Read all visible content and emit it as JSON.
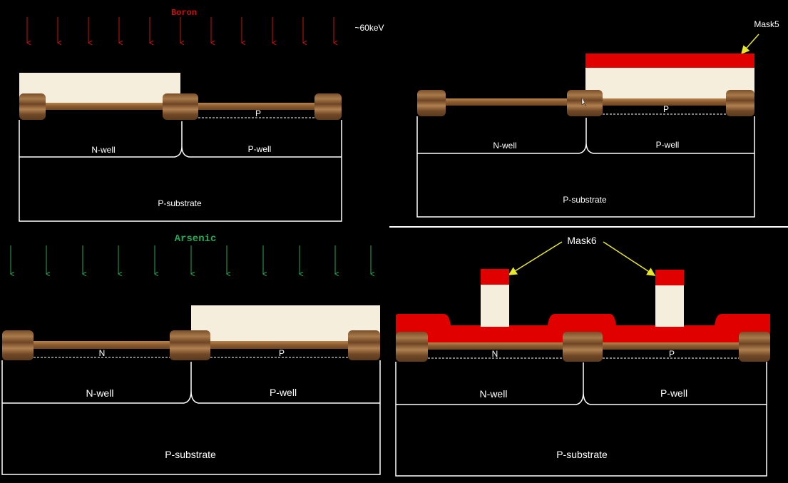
{
  "panels": {
    "boron": {
      "ion_label": "Boron",
      "energy_label": "~60keV",
      "doping_label": "P",
      "nwell": "N-well",
      "pwell": "P-well",
      "substrate": "P-substrate",
      "ion_color": "#cc1111"
    },
    "mask5": {
      "mask_label": "Mask5",
      "doping_label": "P",
      "nwell": "N-well",
      "pwell": "P-well",
      "substrate": "P-substrate"
    },
    "arsenic": {
      "ion_label": "Arsenic",
      "doping_n": "N",
      "doping_p": "P",
      "nwell": "N-well",
      "pwell": "P-well",
      "substrate": "P-substrate",
      "ion_color": "#22aa55"
    },
    "mask6": {
      "mask_label": "Mask6",
      "doping_n": "N",
      "doping_p": "P",
      "nwell": "N-well",
      "pwell": "P-well",
      "substrate": "P-substrate"
    }
  },
  "colors": {
    "resist": "#f6eedc",
    "mask_red": "#e00000",
    "oxide_brown": "#9a6a3a",
    "annotation_arrow": "#e6e62a"
  }
}
